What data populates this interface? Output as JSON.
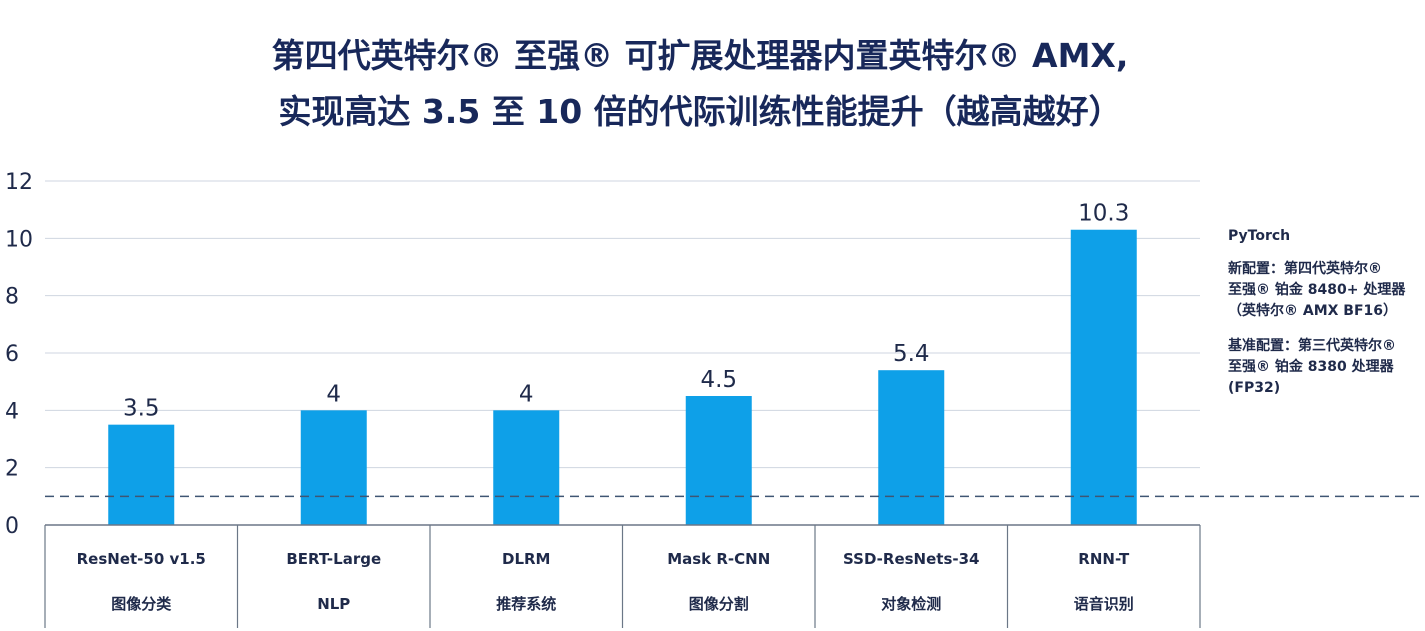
{
  "chart_data": {
    "type": "bar",
    "title_lines": [
      "第四代英特尔® 至强® 可扩展处理器内置英特尔® AMX,",
      "实现高达 3.5 至 10 倍的代际训练性能提升（越高越好）"
    ],
    "categories": [
      {
        "name": "ResNet-50 v1.5",
        "sub": "图像分类"
      },
      {
        "name": "BERT-Large",
        "sub": "NLP"
      },
      {
        "name": "DLRM",
        "sub": "推荐系统"
      },
      {
        "name": "Mask R-CNN",
        "sub": "图像分割"
      },
      {
        "name": "SSD-ResNets-34",
        "sub": "对象检测"
      },
      {
        "name": "RNN-T",
        "sub": "语音识别"
      }
    ],
    "values": [
      3.5,
      4,
      4,
      4.5,
      5.4,
      10.3
    ],
    "value_labels": [
      "3.5",
      "4",
      "4",
      "4.5",
      "5.4",
      "10.3"
    ],
    "ylim": [
      0,
      12
    ],
    "yticks": [
      0,
      2,
      4,
      6,
      8,
      10,
      12
    ],
    "baseline": 1,
    "grid": true,
    "bar_color": "#0ea0e8",
    "legend_placement": "right",
    "legend": {
      "framework": "PyTorch",
      "new_config_lines": [
        "新配置：第四代英特尔®",
        "至强® 铂金 8480+ 处理器",
        "（英特尔® AMX BF16）"
      ],
      "base_config_lines": [
        "基准配置：第三代英特尔®",
        "至强® 铂金 8380 处理器",
        "(FP32)"
      ]
    }
  }
}
